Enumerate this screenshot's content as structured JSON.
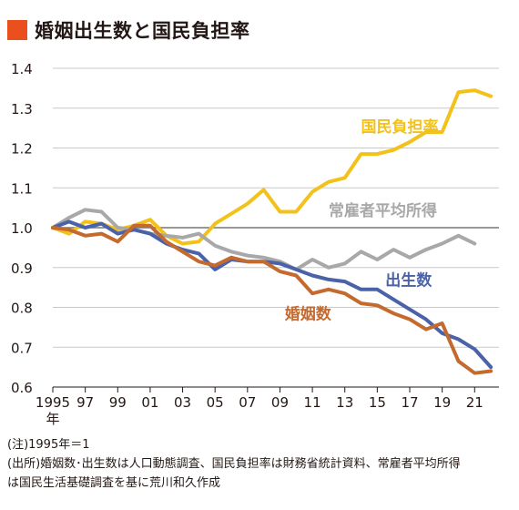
{
  "title": "婚姻出生数と国民負担率",
  "colors": {
    "title_mark": "#e9501e",
    "婚姻数": "#c46a2f",
    "出生数": "#4a62a8",
    "国民負担率": "#f2c21a",
    "常雇者平均所得": "#a8a8a8",
    "baseline": "#777777",
    "grid": "#c9c9c9"
  },
  "chart_data": {
    "type": "line",
    "title": "婚姻出生数と国民負担率",
    "x": [
      1995,
      1996,
      1997,
      1998,
      1999,
      2000,
      2001,
      2002,
      2003,
      2004,
      2005,
      2006,
      2007,
      2008,
      2009,
      2010,
      2011,
      2012,
      2013,
      2014,
      2015,
      2016,
      2017,
      2018,
      2019,
      2020,
      2021,
      2022
    ],
    "x_tick_labels": [
      "1995",
      "97",
      "99",
      "01",
      "03",
      "05",
      "07",
      "09",
      "11",
      "13",
      "15",
      "17",
      "19",
      "21"
    ],
    "x_tick_sub": "年",
    "ylim": [
      0.6,
      1.4
    ],
    "y_ticks": [
      "0.6",
      "0.7",
      "0.8",
      "0.9",
      "1.0",
      "1.1",
      "1.2",
      "1.3",
      "1.4"
    ],
    "grid": "horizontal",
    "baseline": 1.0,
    "series": [
      {
        "name": "国民負担率",
        "x": [
          1995,
          1996,
          1997,
          1998,
          1999,
          2000,
          2001,
          2002,
          2003,
          2004,
          2005,
          2006,
          2007,
          2008,
          2009,
          2010,
          2011,
          2012,
          2013,
          2014,
          2015,
          2016,
          2017,
          2018,
          2019,
          2020,
          2021,
          2022
        ],
        "values": [
          1.0,
          0.985,
          1.015,
          1.01,
          0.995,
          1.005,
          1.02,
          0.98,
          0.96,
          0.965,
          1.01,
          1.035,
          1.06,
          1.095,
          1.04,
          1.04,
          1.09,
          1.115,
          1.125,
          1.185,
          1.185,
          1.195,
          1.215,
          1.24,
          1.24,
          1.34,
          1.345,
          1.33
        ]
      },
      {
        "name": "常雇者平均所得",
        "x": [
          1995,
          1996,
          1997,
          1998,
          1999,
          2000,
          2001,
          2002,
          2003,
          2004,
          2005,
          2006,
          2007,
          2008,
          2009,
          2010,
          2011,
          2012,
          2013,
          2014,
          2015,
          2016,
          2017,
          2018,
          2019,
          2020,
          2021,
          2022
        ],
        "values": [
          1.0,
          1.025,
          1.045,
          1.04,
          1.0,
          0.995,
          0.985,
          0.98,
          0.975,
          0.985,
          0.955,
          0.94,
          0.93,
          0.925,
          0.915,
          0.895,
          0.92,
          0.9,
          0.91,
          0.94,
          0.92,
          0.945,
          0.925,
          0.945,
          0.96,
          0.98,
          0.96,
          null
        ]
      },
      {
        "name": "出生数",
        "x": [
          1995,
          1996,
          1997,
          1998,
          1999,
          2000,
          2001,
          2002,
          2003,
          2004,
          2005,
          2006,
          2007,
          2008,
          2009,
          2010,
          2011,
          2012,
          2013,
          2014,
          2015,
          2016,
          2017,
          2018,
          2019,
          2020,
          2021,
          2022
        ],
        "values": [
          1.0,
          1.015,
          1.0,
          1.01,
          0.985,
          0.995,
          0.985,
          0.96,
          0.945,
          0.935,
          0.895,
          0.92,
          0.915,
          0.915,
          0.91,
          0.895,
          0.88,
          0.87,
          0.865,
          0.845,
          0.845,
          0.82,
          0.795,
          0.77,
          0.735,
          0.72,
          0.695,
          0.65
        ]
      },
      {
        "name": "婚姻数",
        "x": [
          1995,
          1996,
          1997,
          1998,
          1999,
          2000,
          2001,
          2002,
          2003,
          2004,
          2005,
          2006,
          2007,
          2008,
          2009,
          2010,
          2011,
          2012,
          2013,
          2014,
          2015,
          2016,
          2017,
          2018,
          2019,
          2020,
          2021,
          2022
        ],
        "values": [
          1.0,
          0.995,
          0.98,
          0.985,
          0.965,
          1.005,
          1.005,
          0.965,
          0.94,
          0.915,
          0.905,
          0.925,
          0.915,
          0.915,
          0.89,
          0.88,
          0.835,
          0.845,
          0.835,
          0.81,
          0.805,
          0.785,
          0.77,
          0.745,
          0.76,
          0.665,
          0.635,
          0.64
        ]
      }
    ],
    "series_labels": [
      {
        "name": "国民負担率",
        "at_x": 2014.0,
        "at_y": 1.24
      },
      {
        "name": "常雇者平均所得",
        "at_x": 2012.0,
        "at_y": 1.03
      },
      {
        "name": "出生数",
        "at_x": 2015.5,
        "at_y": 0.855
      },
      {
        "name": "婚姻数",
        "at_x": 2009.3,
        "at_y": 0.77
      }
    ]
  },
  "notes": {
    "line1": "(注)1995年＝1",
    "line2": "(出所)婚姻数･出生数は人口動態調査、国民負担率は財務省統計資料、常雇者平均所得",
    "line3": "は国民生活基礎調査を基に荒川和久作成"
  }
}
